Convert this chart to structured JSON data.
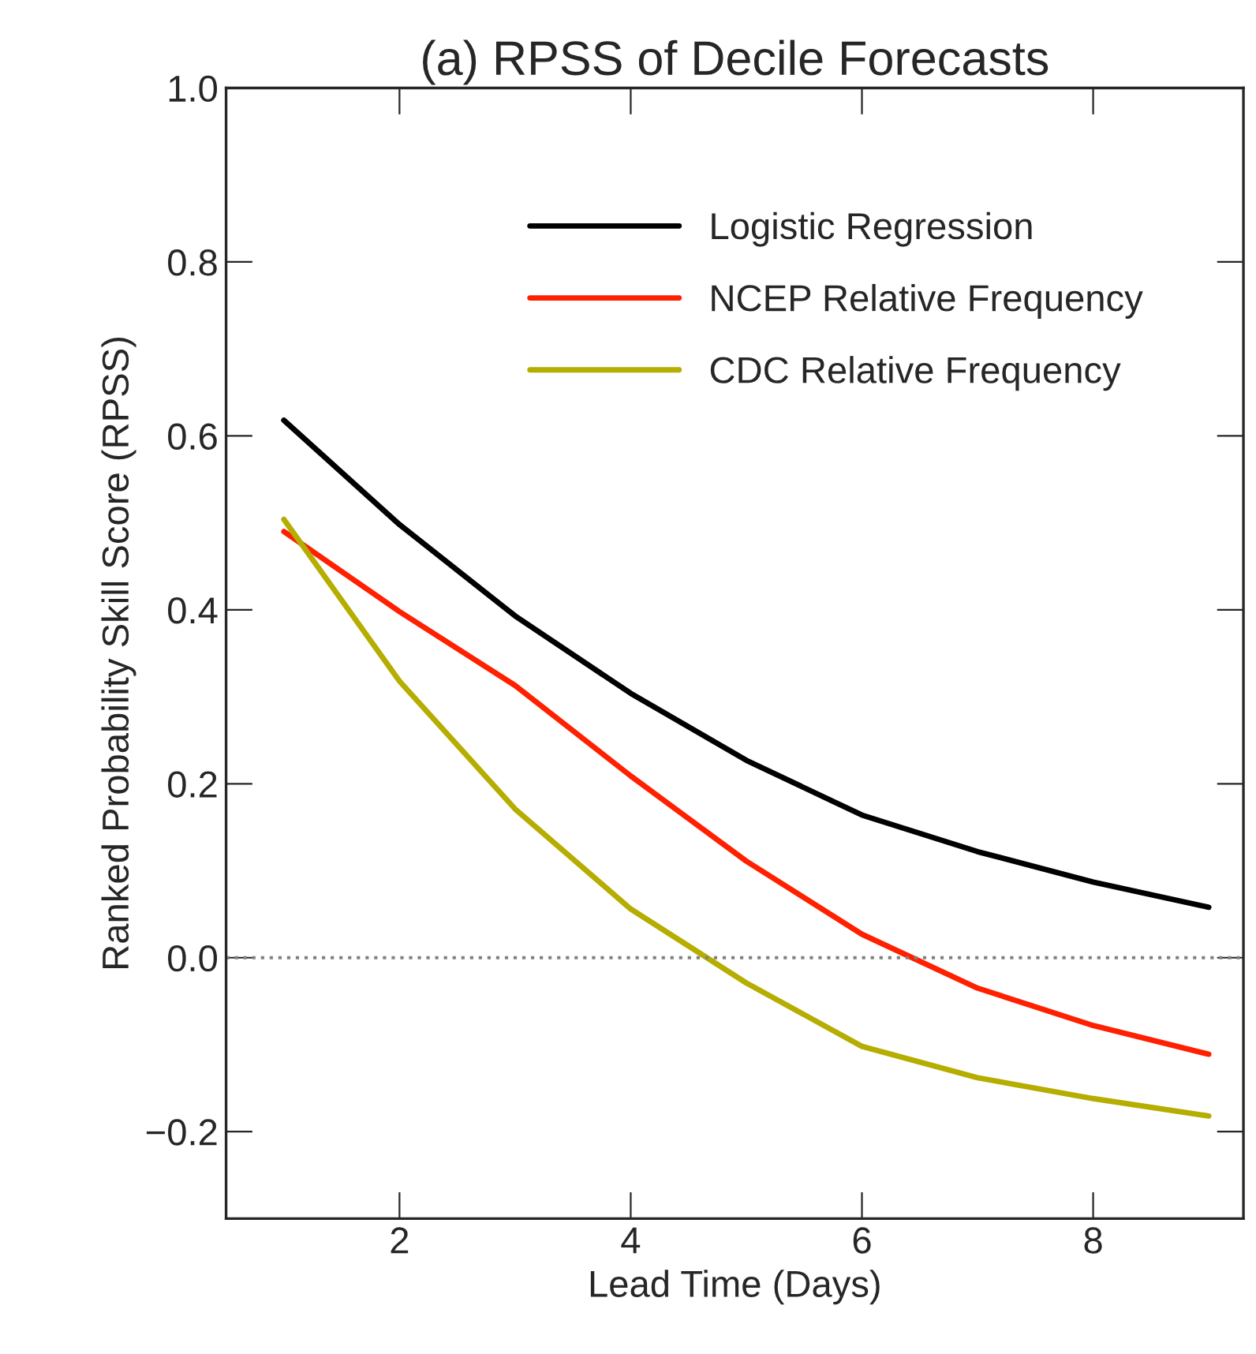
{
  "chart_data": {
    "type": "line",
    "title": "(a) RPSS of Decile Forecasts",
    "xlabel": "Lead Time (Days)",
    "ylabel": "Ranked Probability Skill Score (RPSS)",
    "x": [
      1,
      2,
      3,
      4,
      5,
      6,
      7,
      8,
      9
    ],
    "series": [
      {
        "name": "Logistic Regression",
        "color": "#000000",
        "values": [
          0.618,
          0.498,
          0.393,
          0.304,
          0.227,
          0.164,
          0.122,
          0.087,
          0.058
        ]
      },
      {
        "name": "NCEP Relative Frequency",
        "color": "#ff2000",
        "values": [
          0.49,
          0.398,
          0.313,
          0.209,
          0.111,
          0.027,
          -0.035,
          -0.078,
          -0.111
        ]
      },
      {
        "name": "CDC Relative Frequency",
        "color": "#b5ad00",
        "values": [
          0.504,
          0.318,
          0.171,
          0.056,
          -0.029,
          -0.102,
          -0.138,
          -0.162,
          -0.182
        ]
      }
    ],
    "xlim": [
      0.5,
      9.3
    ],
    "ylim": [
      -0.3,
      1.0
    ],
    "xticks": [
      2,
      4,
      6,
      8
    ],
    "yticks": [
      {
        "value": -0.2,
        "label": "−0.2"
      },
      {
        "value": 0,
        "label": "0.0"
      },
      {
        "value": 0.2,
        "label": "0.2"
      },
      {
        "value": 0.4,
        "label": "0.4"
      },
      {
        "value": 0.6,
        "label": "0.6"
      },
      {
        "value": 0.8,
        "label": "0.8"
      },
      {
        "value": 1.0,
        "label": "1.0"
      }
    ],
    "ref_lines": [
      {
        "axis": "y",
        "value": 0,
        "color": "#808080",
        "line_style": "dotted"
      }
    ],
    "legend": "top",
    "grid": false,
    "marker": "none",
    "line_style": "solid"
  }
}
